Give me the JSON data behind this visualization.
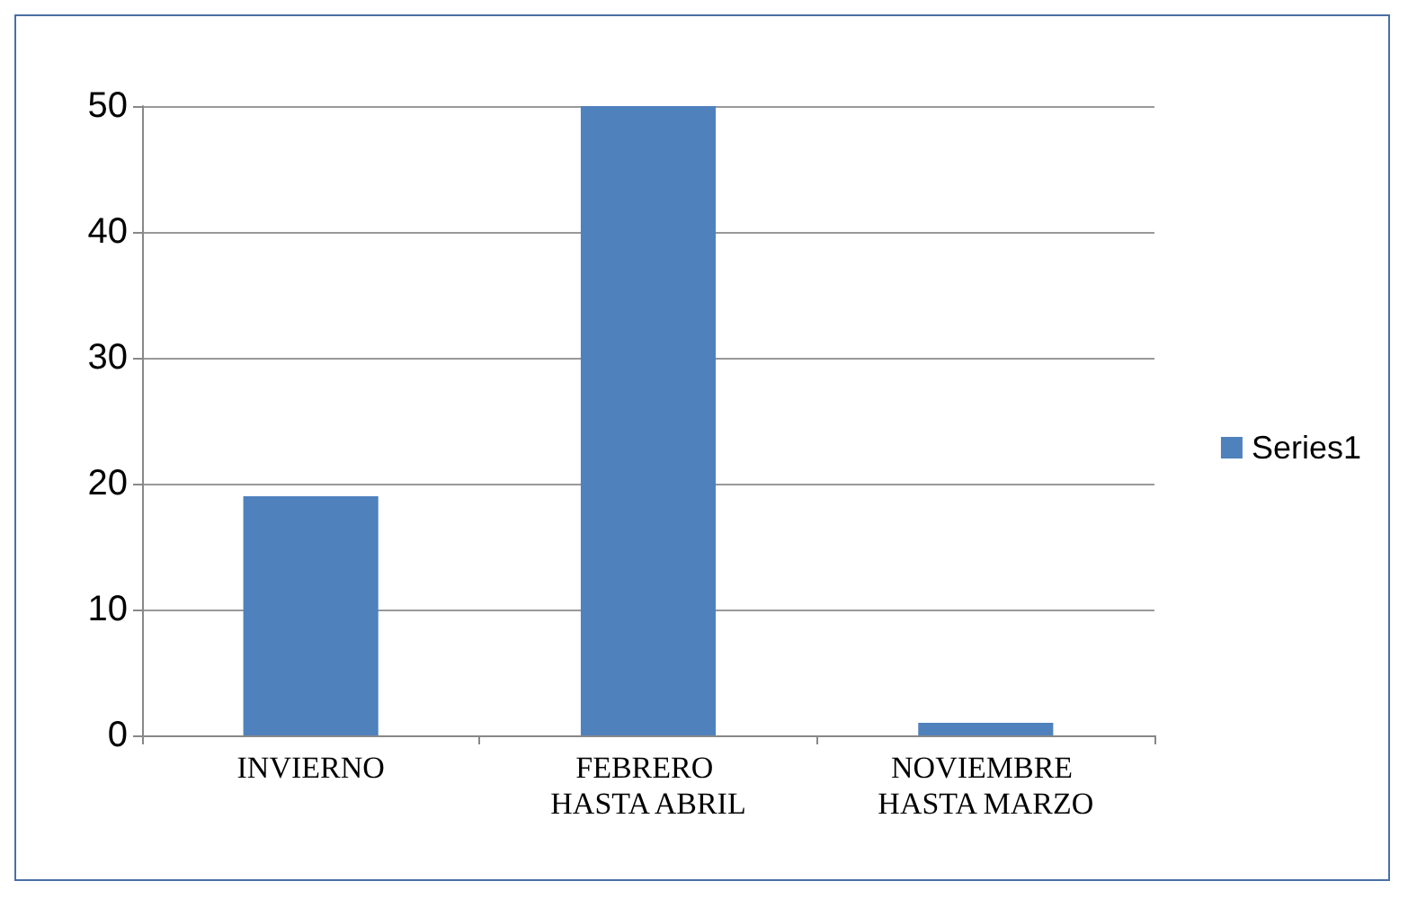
{
  "chart_data": {
    "type": "bar",
    "categories": [
      "INVIERNO",
      "FEBRERO HASTA ABRIL",
      "NOVIEMBRE HASTA MARZO"
    ],
    "series": [
      {
        "name": "Series1",
        "color": "#4f81bd",
        "values": [
          19,
          50,
          1
        ]
      }
    ],
    "ylim": [
      0,
      50
    ],
    "yticks": [
      0,
      10,
      20,
      30,
      40,
      50
    ],
    "grid": "y",
    "legend": "right"
  }
}
